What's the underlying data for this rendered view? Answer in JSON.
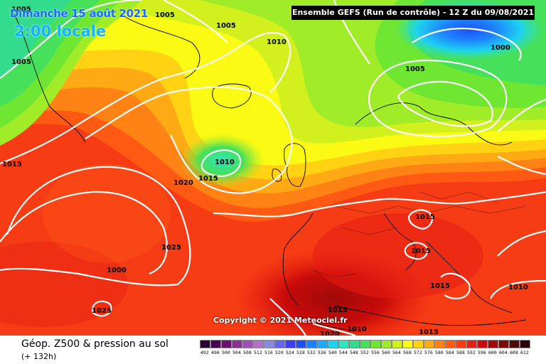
{
  "header": {
    "date_label": "Dimanche 15 août 2021",
    "time_label": "2:00 locale",
    "run_label": "Ensemble GEFS  (Run de contrôle)  -  12 Z du 09/08/2021"
  },
  "map": {
    "copyright": "Copyright © 2021 Meteociel.fr",
    "isobar_labels": [
      {
        "id": "iso-1005-a",
        "text": "1005"
      },
      {
        "id": "iso-1005-b",
        "text": "1005"
      },
      {
        "id": "iso-1005-c",
        "text": "1005"
      },
      {
        "id": "iso-1005-d",
        "text": "1005"
      },
      {
        "id": "iso-1005-e",
        "text": "1005"
      },
      {
        "id": "iso-1010-a",
        "text": "1010"
      },
      {
        "id": "iso-1010-b",
        "text": "1010"
      },
      {
        "id": "iso-1010-c",
        "text": "1010"
      },
      {
        "id": "iso-1010-d",
        "text": "1010"
      },
      {
        "id": "iso-1015-a",
        "text": "1015"
      },
      {
        "id": "iso-1015-b",
        "text": "1015"
      },
      {
        "id": "iso-1015-c",
        "text": "1015"
      },
      {
        "id": "iso-1015-d",
        "text": "1015"
      },
      {
        "id": "iso-1015-e",
        "text": "1015"
      },
      {
        "id": "iso-1015-f",
        "text": "1015"
      },
      {
        "id": "iso-1015-g",
        "text": "1015"
      },
      {
        "id": "iso-1020-a",
        "text": "1020"
      },
      {
        "id": "iso-1020-b",
        "text": "1020"
      },
      {
        "id": "iso-1025-a",
        "text": "1025"
      },
      {
        "id": "iso-1025-b",
        "text": "1025"
      },
      {
        "id": "iso-1000-a",
        "text": "1000"
      },
      {
        "id": "iso-1000-b",
        "text": "1000"
      }
    ]
  },
  "legend": {
    "title": "Géop. Z500 & pression au sol",
    "subtitle": "(+ 132h)",
    "scale": [
      {
        "label": "492",
        "color": "#2a0030"
      },
      {
        "label": "496",
        "color": "#4a0050"
      },
      {
        "label": "500",
        "color": "#6a1070"
      },
      {
        "label": "504",
        "color": "#8a3090"
      },
      {
        "label": "508",
        "color": "#a050b0"
      },
      {
        "label": "512",
        "color": "#b070c8"
      },
      {
        "label": "516",
        "color": "#8a8ae0"
      },
      {
        "label": "520",
        "color": "#6464f0"
      },
      {
        "label": "524",
        "color": "#3c3cf0"
      },
      {
        "label": "528",
        "color": "#1e50f0"
      },
      {
        "label": "532",
        "color": "#1e82ff"
      },
      {
        "label": "536",
        "color": "#1eaaff"
      },
      {
        "label": "540",
        "color": "#1ed2f0"
      },
      {
        "label": "544",
        "color": "#2ce6be"
      },
      {
        "label": "548",
        "color": "#32dc8c"
      },
      {
        "label": "552",
        "color": "#46e05a"
      },
      {
        "label": "556",
        "color": "#6ee632"
      },
      {
        "label": "560",
        "color": "#a0ec28"
      },
      {
        "label": "564",
        "color": "#d2f01e"
      },
      {
        "label": "568",
        "color": "#fafa14"
      },
      {
        "label": "572",
        "color": "#ffd214"
      },
      {
        "label": "576",
        "color": "#ffaa14"
      },
      {
        "label": "580",
        "color": "#ff8214"
      },
      {
        "label": "584",
        "color": "#ff5a14"
      },
      {
        "label": "588",
        "color": "#f53c14"
      },
      {
        "label": "592",
        "color": "#e61e14"
      },
      {
        "label": "596",
        "color": "#c80a0a"
      },
      {
        "label": "600",
        "color": "#a00a0a"
      },
      {
        "label": "604",
        "color": "#780a0a"
      },
      {
        "label": "608",
        "color": "#500808"
      },
      {
        "label": "612",
        "color": "#280404"
      }
    ]
  }
}
